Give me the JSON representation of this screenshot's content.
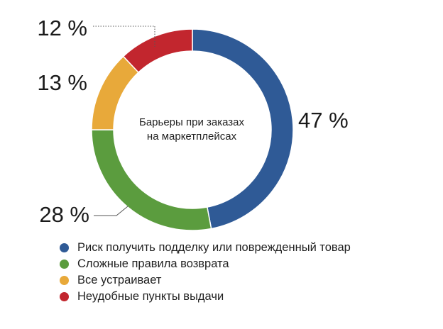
{
  "chart_data": {
    "type": "pie",
    "variant": "donut",
    "title_lines": [
      "Барьеры при заказах",
      "на маркетплейсах"
    ],
    "unit_suffix": " %",
    "categories": [
      "Риск получить подделку или поврежденный товар",
      "Сложные правила возврата",
      "Все устраивает",
      "Неудобные пункты выдачи"
    ],
    "values": [
      47,
      28,
      13,
      12
    ],
    "colors": [
      "#2f5a96",
      "#5b9c3e",
      "#e8a93a",
      "#c2262e"
    ],
    "legend_position": "bottom-left"
  }
}
